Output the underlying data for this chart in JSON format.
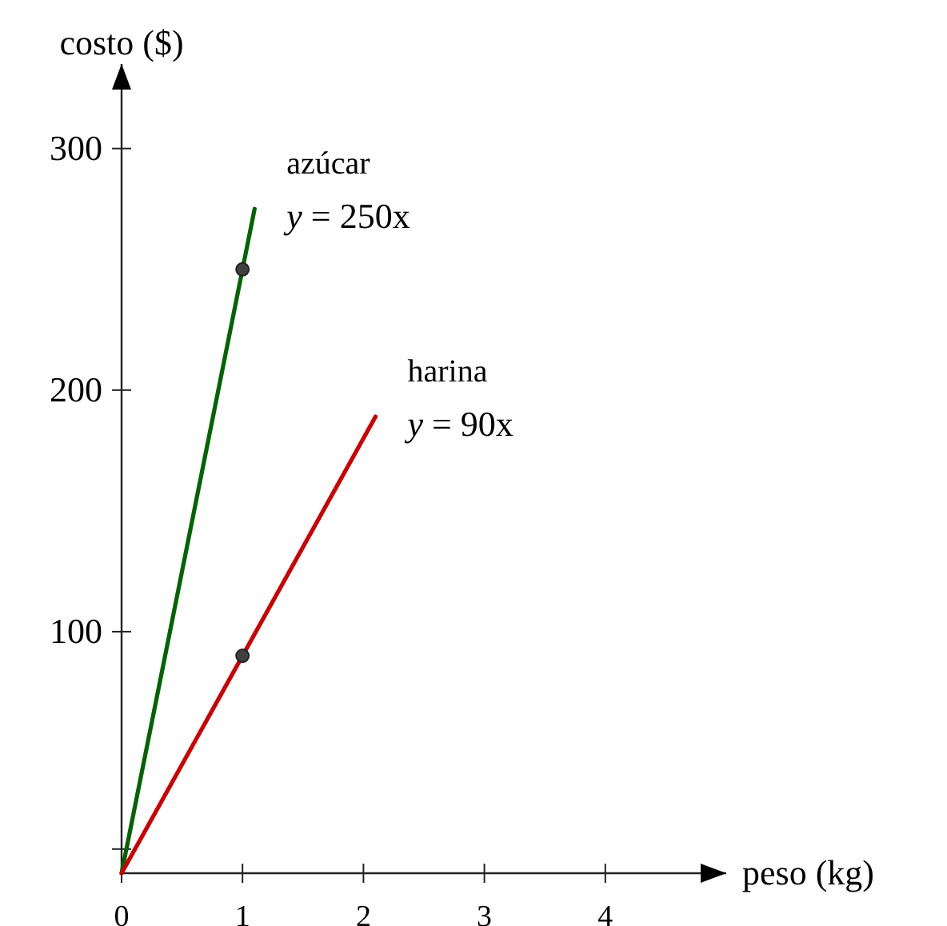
{
  "chart_data": {
    "type": "line",
    "xlabel": "peso (kg)",
    "ylabel": "costo ($)",
    "xlim": [
      0,
      5
    ],
    "ylim": [
      0,
      335
    ],
    "xticks": [
      0,
      1,
      2,
      3,
      4
    ],
    "yticks": [
      {
        "value": 10,
        "label": null
      },
      100,
      200,
      300
    ],
    "grid": false,
    "line_style": "solid",
    "series": [
      {
        "color": "#006400",
        "x": [
          0,
          1.1
        ],
        "values": [
          0,
          275
        ]
      },
      {
        "color": "#cc0000",
        "x": [
          0,
          2.1
        ],
        "values": [
          0,
          189
        ]
      },
      {
        "type": "scatter",
        "color": "#404040",
        "x": [
          1,
          1
        ],
        "values": [
          250,
          90
        ]
      }
    ],
    "annotations": [
      "azúcar",
      "y = 250x",
      "harina",
      "y = 90x"
    ]
  }
}
